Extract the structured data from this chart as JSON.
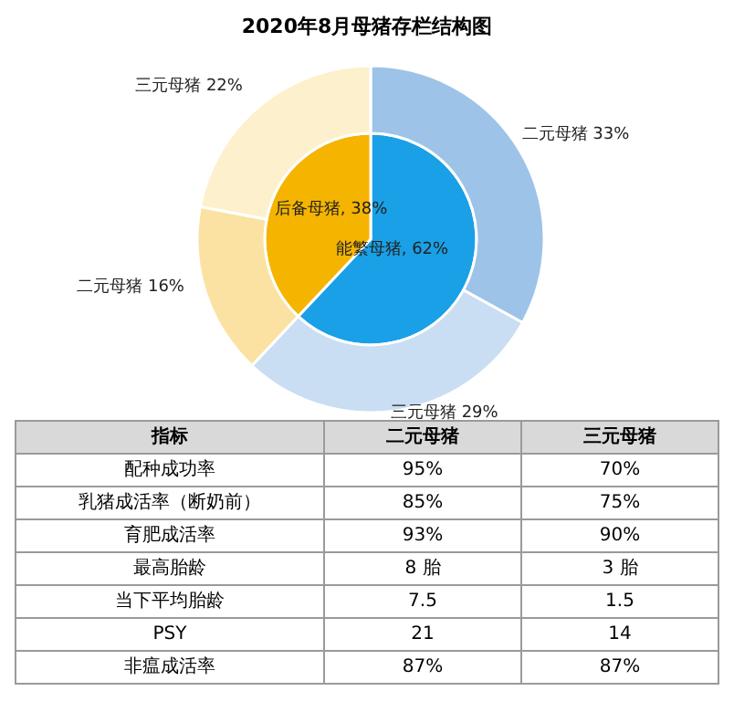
{
  "chart_data": [
    {
      "type": "pie",
      "title": "2020年8月母猪存栏结构图",
      "data_labels": true,
      "categories": [
        "能繁母猪",
        "后备母猪"
      ],
      "values": [
        62,
        38
      ],
      "colors": [
        "#1aa0e6",
        "#f5b400"
      ],
      "value_labels": [
        "62%",
        "38%"
      ]
    },
    {
      "type": "donut",
      "data_labels": true,
      "categories": [
        "二元母猪",
        "三元母猪",
        "二元母猪",
        "三元母猪"
      ],
      "values": [
        33,
        29,
        16,
        22
      ],
      "colors": [
        "#9dc3e8",
        "#c9def3",
        "#fbe2a2",
        "#fdf0cc"
      ],
      "value_labels": [
        "33%",
        "29%",
        "16%",
        "22%"
      ]
    },
    {
      "type": "heatmap",
      "ylabel": "指标",
      "categories": [
        "二元母猪",
        "三元母猪"
      ],
      "y_categories": [
        "配种成功率",
        "乳猪成活率（断奶前）",
        "育肥成活率",
        "最高胎龄",
        "当下平均胎龄",
        "PSY",
        "非瘟成活率"
      ],
      "cells": [
        [
          95,
          70
        ],
        [
          85,
          75
        ],
        [
          93,
          90
        ],
        [
          8,
          3
        ],
        [
          7.5,
          1.5
        ],
        [
          21,
          14
        ],
        [
          87,
          87
        ]
      ],
      "cell_labels": [
        [
          "95%",
          "70%"
        ],
        [
          "85%",
          "75%"
        ],
        [
          "93%",
          "90%"
        ],
        [
          "8 胎",
          "3 胎"
        ],
        [
          "7.5",
          "1.5"
        ],
        [
          "21",
          "14"
        ],
        [
          "87%",
          "87%"
        ]
      ]
    }
  ]
}
